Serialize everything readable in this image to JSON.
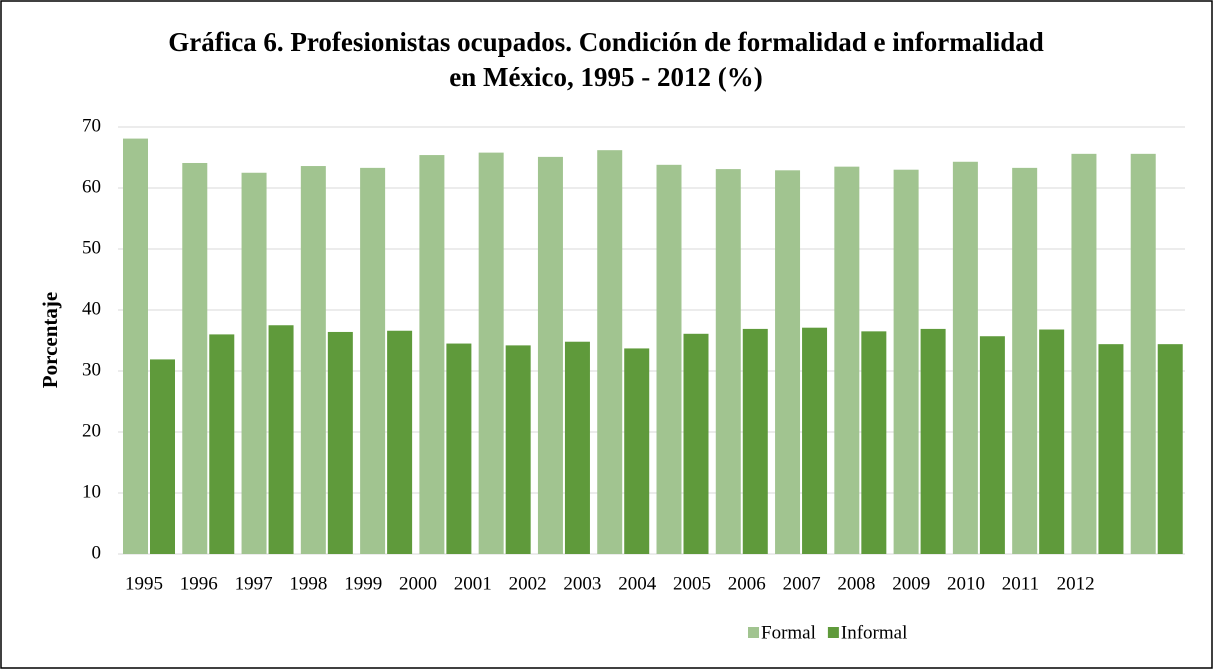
{
  "chart_data": {
    "type": "bar",
    "title": "Gráfica 6. Profesionistas ocupados. Condición de formalidad e informalidad en México, 1995 - 2012 (%)",
    "ylabel": "Porcentaje",
    "categories": [
      "1995",
      "1996",
      "1997",
      "1998",
      "1999",
      "2000",
      "2001",
      "2002",
      "2003",
      "2004",
      "2005",
      "2006",
      "2007",
      "2008",
      "2009",
      "2010",
      "2011",
      "2012"
    ],
    "series": [
      {
        "name": "Formal",
        "color": "#a1c490",
        "values": [
          68.1,
          64.1,
          62.5,
          63.6,
          63.3,
          65.4,
          65.8,
          65.1,
          66.2,
          63.8,
          63.1,
          62.9,
          63.5,
          63.0,
          64.3,
          63.3,
          65.6,
          65.6
        ]
      },
      {
        "name": "Informal",
        "color": "#5f9a3b",
        "values": [
          31.9,
          36.0,
          37.5,
          36.4,
          36.6,
          34.5,
          34.2,
          34.8,
          33.7,
          36.1,
          36.9,
          37.1,
          36.5,
          36.9,
          35.7,
          36.8,
          34.4,
          34.4
        ]
      }
    ],
    "ylim": [
      0,
      70
    ],
    "yticks": [
      0,
      10,
      20,
      30,
      40,
      50,
      60,
      70
    ],
    "grid": true,
    "legend": "bottom"
  }
}
